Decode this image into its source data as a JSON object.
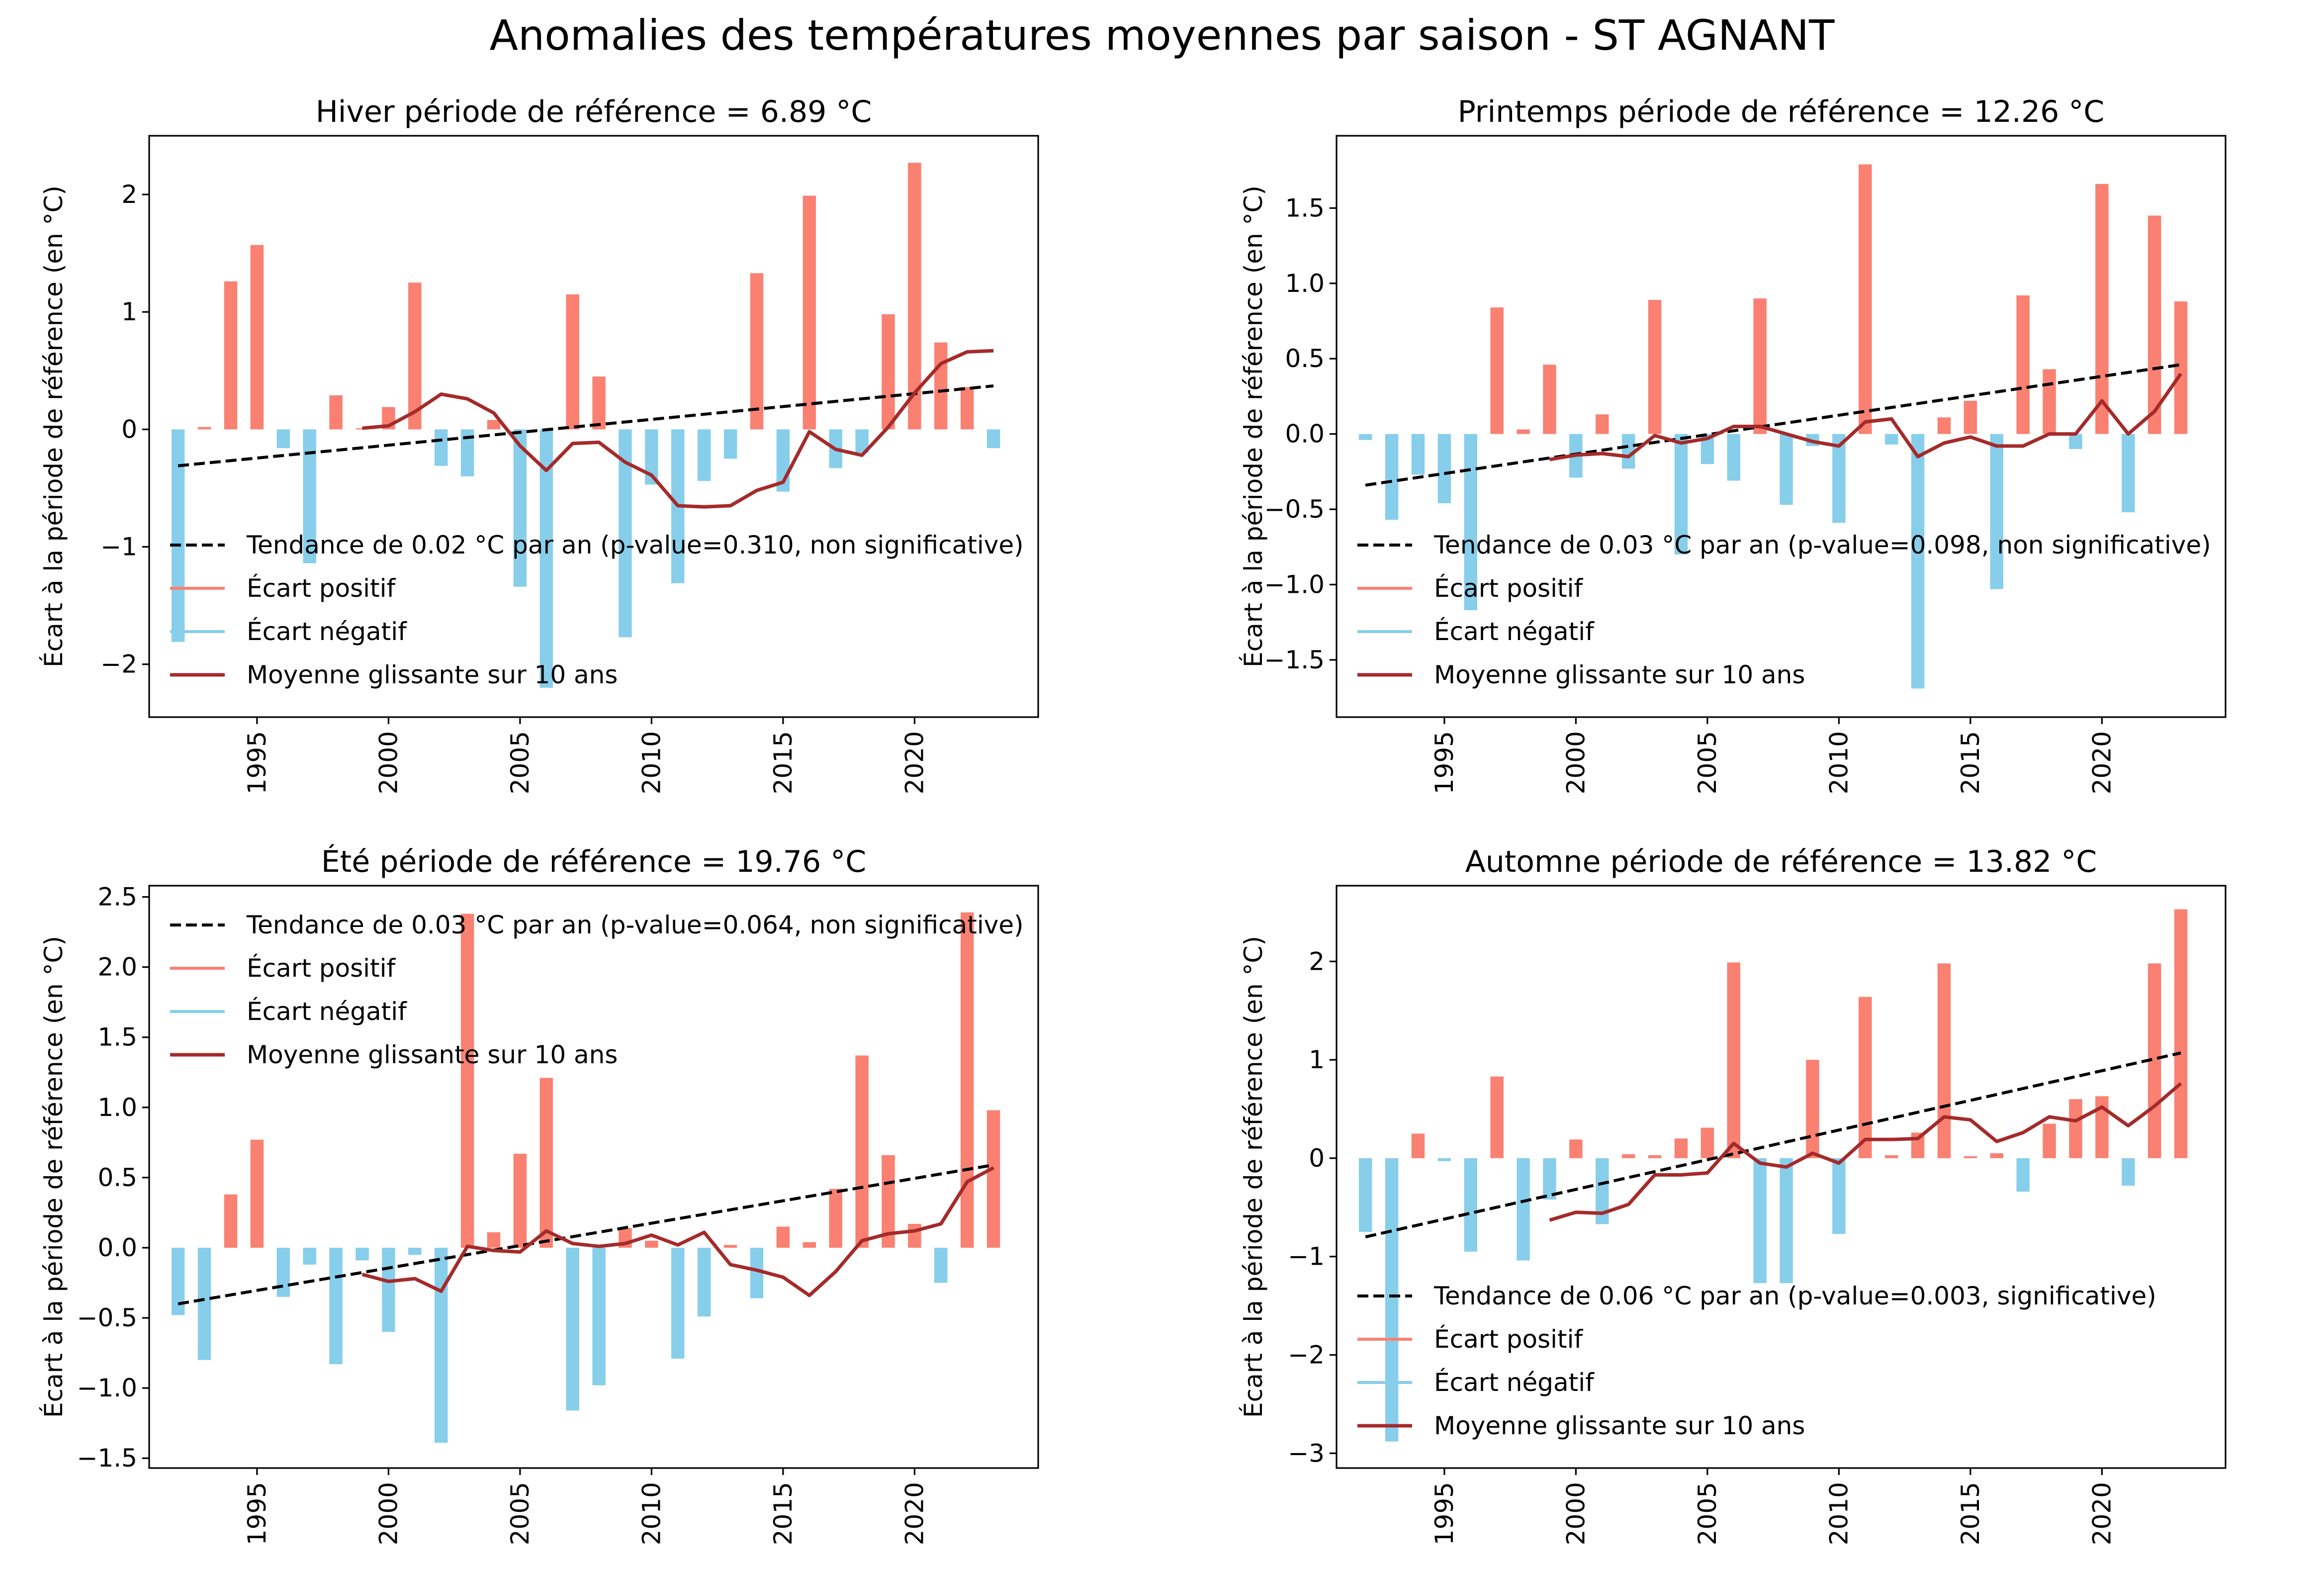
{
  "figure": {
    "suptitle": "Anomalies des températures moyennes par saison - ST AGNANT"
  },
  "colors": {
    "positive": "#fa8072",
    "negative": "#87ceeb",
    "rolling": "#a52a2a",
    "trend": "#000000"
  },
  "chart_data": [
    {
      "type": "bar",
      "title": "Hiver période de référence = 6.89 °C",
      "xlabel": "",
      "ylabel": "Écart à la période de référence (en °C)",
      "x": [
        1992,
        1993,
        1994,
        1995,
        1996,
        1997,
        1998,
        1999,
        2000,
        2001,
        2002,
        2003,
        2004,
        2005,
        2006,
        2007,
        2008,
        2009,
        2010,
        2011,
        2012,
        2013,
        2014,
        2015,
        2016,
        2017,
        2018,
        2019,
        2020,
        2021,
        2022,
        2023
      ],
      "values": [
        -1.81,
        0.02,
        1.26,
        1.57,
        -0.16,
        -1.14,
        0.29,
        0.01,
        0.19,
        1.25,
        -0.31,
        -0.4,
        0.08,
        -1.34,
        -2.2,
        1.15,
        0.45,
        -1.77,
        -0.47,
        -1.31,
        -0.44,
        -0.25,
        1.33,
        -0.53,
        1.99,
        -0.33,
        -0.2,
        0.98,
        2.27,
        0.74,
        0.36,
        -0.16
      ],
      "rolling_mean_10y": {
        "x": [
          1999,
          2000,
          2001,
          2002,
          2003,
          2004,
          2005,
          2006,
          2007,
          2008,
          2009,
          2010,
          2011,
          2012,
          2013,
          2014,
          2015,
          2016,
          2017,
          2018,
          2019,
          2020,
          2021,
          2022,
          2023
        ],
        "values": [
          0.01,
          0.03,
          0.15,
          0.3,
          0.26,
          0.14,
          -0.14,
          -0.35,
          -0.12,
          -0.11,
          -0.28,
          -0.39,
          -0.65,
          -0.66,
          -0.65,
          -0.52,
          -0.45,
          -0.02,
          -0.17,
          -0.22,
          0.02,
          0.31,
          0.56,
          0.66,
          0.67
        ]
      },
      "trend": {
        "x": [
          1992,
          2023
        ],
        "y": [
          -0.31,
          0.37
        ]
      },
      "ylim": [
        -2.45,
        2.5
      ],
      "xlim": [
        1990.9,
        2024.7
      ],
      "yticks": [
        -2,
        -1,
        0,
        1,
        2
      ],
      "ytick_labels": [
        "−2",
        "−1",
        "0",
        "1",
        "2"
      ],
      "xticks": [
        1995,
        2000,
        2005,
        2010,
        2015,
        2020
      ],
      "legend": {
        "placement": "lower-left",
        "entries": [
          "Tendance de 0.02 °C par an (p-value=0.310, non significative)",
          "Écart positif",
          "Écart négatif",
          "Moyenne glissante sur 10 ans"
        ]
      },
      "grid": false
    },
    {
      "type": "bar",
      "title": "Printemps période de référence = 12.26 °C",
      "xlabel": "",
      "ylabel": "Écart à la période de référence (en °C)",
      "x": [
        1992,
        1993,
        1994,
        1995,
        1996,
        1997,
        1998,
        1999,
        2000,
        2001,
        2002,
        2003,
        2004,
        2005,
        2006,
        2007,
        2008,
        2009,
        2010,
        2011,
        2012,
        2013,
        2014,
        2015,
        2016,
        2017,
        2018,
        2019,
        2020,
        2021,
        2022,
        2023
      ],
      "values": [
        -0.04,
        -0.57,
        -0.27,
        -0.46,
        -1.17,
        0.84,
        0.03,
        0.46,
        -0.29,
        0.13,
        -0.23,
        0.89,
        -0.8,
        -0.2,
        -0.31,
        0.9,
        -0.47,
        -0.08,
        -0.59,
        1.79,
        -0.07,
        -1.69,
        0.11,
        0.22,
        -1.03,
        0.92,
        0.43,
        -0.1,
        1.66,
        -0.52,
        1.45,
        0.88
      ],
      "rolling_mean_10y": {
        "x": [
          1999,
          2000,
          2001,
          2002,
          2003,
          2004,
          2005,
          2006,
          2007,
          2008,
          2009,
          2010,
          2011,
          2012,
          2013,
          2014,
          2015,
          2016,
          2017,
          2018,
          2019,
          2020,
          2021,
          2022,
          2023
        ],
        "values": [
          -0.17,
          -0.14,
          -0.13,
          -0.15,
          -0.01,
          -0.06,
          -0.03,
          0.05,
          0.05,
          0.0,
          -0.05,
          -0.08,
          0.08,
          0.1,
          -0.15,
          -0.06,
          -0.02,
          -0.08,
          -0.08,
          0.0,
          0.0,
          0.22,
          0.0,
          0.15,
          0.4
        ]
      },
      "trend": {
        "x": [
          1992,
          2023
        ],
        "y": [
          -0.34,
          0.46
        ]
      },
      "ylim": [
        -1.88,
        1.98
      ],
      "xlim": [
        1990.9,
        2024.7
      ],
      "yticks": [
        -1.5,
        -1.0,
        -0.5,
        0.0,
        0.5,
        1.0,
        1.5
      ],
      "ytick_labels": [
        "−1.5",
        "−1.0",
        "−0.5",
        "0.0",
        "0.5",
        "1.0",
        "1.5"
      ],
      "xticks": [
        1995,
        2000,
        2005,
        2010,
        2015,
        2020
      ],
      "legend": {
        "placement": "lower-left",
        "entries": [
          "Tendance de 0.03 °C par an (p-value=0.098, non significative)",
          "Écart positif",
          "Écart négatif",
          "Moyenne glissante sur 10 ans"
        ]
      },
      "grid": false
    },
    {
      "type": "bar",
      "title": "Été période de référence = 19.76 °C",
      "xlabel": "",
      "ylabel": "Écart à la période de référence (en °C)",
      "x": [
        1992,
        1993,
        1994,
        1995,
        1996,
        1997,
        1998,
        1999,
        2000,
        2001,
        2002,
        2003,
        2004,
        2005,
        2006,
        2007,
        2008,
        2009,
        2010,
        2011,
        2012,
        2013,
        2014,
        2015,
        2016,
        2017,
        2018,
        2019,
        2020,
        2021,
        2022,
        2023
      ],
      "values": [
        -0.48,
        -0.8,
        0.38,
        0.77,
        -0.35,
        -0.12,
        -0.83,
        -0.09,
        -0.6,
        -0.05,
        -1.39,
        2.38,
        0.11,
        0.67,
        1.21,
        -1.16,
        -0.98,
        0.14,
        0.05,
        -0.79,
        -0.49,
        0.02,
        -0.36,
        0.15,
        0.04,
        0.42,
        1.37,
        0.66,
        0.17,
        -0.25,
        2.39,
        0.98
      ],
      "rolling_mean_10y": {
        "x": [
          1999,
          2000,
          2001,
          2002,
          2003,
          2004,
          2005,
          2006,
          2007,
          2008,
          2009,
          2010,
          2011,
          2012,
          2013,
          2014,
          2015,
          2016,
          2017,
          2018,
          2019,
          2020,
          2021,
          2022,
          2023
        ],
        "values": [
          -0.19,
          -0.24,
          -0.22,
          -0.31,
          0.01,
          -0.02,
          -0.03,
          0.12,
          0.03,
          0.01,
          0.03,
          0.09,
          0.02,
          0.11,
          -0.12,
          -0.16,
          -0.21,
          -0.34,
          -0.17,
          0.05,
          0.1,
          0.12,
          0.17,
          0.47,
          0.57
        ]
      },
      "trend": {
        "x": [
          1992,
          2023
        ],
        "y": [
          -0.4,
          0.59
        ]
      },
      "ylim": [
        -1.57,
        2.58
      ],
      "xlim": [
        1990.9,
        2024.7
      ],
      "yticks": [
        -1.5,
        -1.0,
        -0.5,
        0.0,
        0.5,
        1.0,
        1.5,
        2.0,
        2.5
      ],
      "ytick_labels": [
        "−1.5",
        "−1.0",
        "−0.5",
        "0.0",
        "0.5",
        "1.0",
        "1.5",
        "2.0",
        "2.5"
      ],
      "xticks": [
        1995,
        2000,
        2005,
        2010,
        2015,
        2020
      ],
      "legend": {
        "placement": "upper-left",
        "entries": [
          "Tendance de 0.03 °C par an (p-value=0.064, non significative)",
          "Écart positif",
          "Écart négatif",
          "Moyenne glissante sur 10 ans"
        ]
      },
      "grid": false
    },
    {
      "type": "bar",
      "title": "Automne période de référence = 13.82 °C",
      "xlabel": "",
      "ylabel": "Écart à la période de référence (en °C)",
      "x": [
        1992,
        1993,
        1994,
        1995,
        1996,
        1997,
        1998,
        1999,
        2000,
        2001,
        2002,
        2003,
        2004,
        2005,
        2006,
        2007,
        2008,
        2009,
        2010,
        2011,
        2012,
        2013,
        2014,
        2015,
        2016,
        2017,
        2018,
        2019,
        2020,
        2021,
        2022,
        2023
      ],
      "values": [
        -0.75,
        -2.88,
        0.25,
        -0.03,
        -0.95,
        0.83,
        -1.04,
        -0.42,
        0.19,
        -0.67,
        0.04,
        0.03,
        0.2,
        0.31,
        1.99,
        -1.27,
        -1.27,
        1.0,
        -0.77,
        1.64,
        0.03,
        0.26,
        1.98,
        0.02,
        0.05,
        -0.34,
        0.35,
        0.6,
        0.63,
        -0.28,
        1.98,
        2.53
      ],
      "rolling_mean_10y": {
        "x": [
          1999,
          2000,
          2001,
          2002,
          2003,
          2004,
          2005,
          2006,
          2007,
          2008,
          2009,
          2010,
          2011,
          2012,
          2013,
          2014,
          2015,
          2016,
          2017,
          2018,
          2019,
          2020,
          2021,
          2022,
          2023
        ],
        "values": [
          -0.63,
          -0.55,
          -0.56,
          -0.47,
          -0.17,
          -0.17,
          -0.15,
          0.15,
          -0.05,
          -0.09,
          0.05,
          -0.05,
          0.19,
          0.19,
          0.2,
          0.42,
          0.39,
          0.17,
          0.26,
          0.42,
          0.38,
          0.52,
          0.33,
          0.53,
          0.76
        ]
      },
      "trend": {
        "x": [
          1992,
          2023
        ],
        "y": [
          -0.8,
          1.07
        ]
      },
      "ylim": [
        -3.15,
        2.77
      ],
      "xlim": [
        1990.9,
        2024.7
      ],
      "yticks": [
        -3,
        -2,
        -1,
        0,
        1,
        2
      ],
      "ytick_labels": [
        "−3",
        "−2",
        "−1",
        "0",
        "1",
        "2"
      ],
      "xticks": [
        1995,
        2000,
        2005,
        2010,
        2015,
        2020
      ],
      "legend": {
        "placement": "lower-left",
        "entries": [
          "Tendance de 0.06 °C par an (p-value=0.003, significative)",
          "Écart positif",
          "Écart négatif",
          "Moyenne glissante sur 10 ans"
        ]
      },
      "grid": false
    }
  ]
}
